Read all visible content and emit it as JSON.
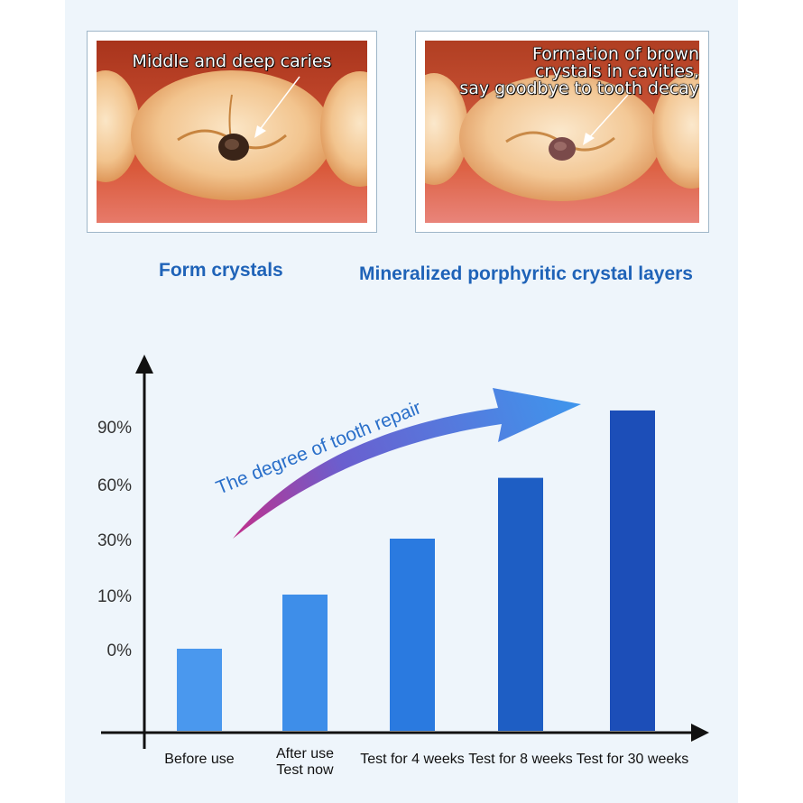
{
  "photos": {
    "left": {
      "caption": "Middle and deep caries"
    },
    "right": {
      "caption": "Formation of brown\ncrystals in cavities,\nsay goodbye to tooth decay"
    }
  },
  "labels": {
    "left": "Form crystals",
    "right": "Mineralized porphyritic crystal layers"
  },
  "chart_data": {
    "type": "bar",
    "annotation": "The degree of tooth repair",
    "y_tick_labels": [
      "0%",
      "10%",
      "30%",
      "60%",
      "90%"
    ],
    "categories": [
      {
        "lines": [
          "Before use"
        ]
      },
      {
        "lines": [
          "After use",
          "Test now"
        ]
      },
      {
        "lines": [
          "Test for 4 weeks"
        ]
      },
      {
        "lines": [
          "Test for 8 weeks"
        ]
      },
      {
        "lines": [
          "Test for 30 weeks"
        ]
      }
    ],
    "values": [
      0,
      10,
      30,
      63,
      98
    ],
    "ylim": [
      0,
      100
    ],
    "colors": {
      "bars": [
        "#4a98ee",
        "#3e8ee9",
        "#2a7ae0",
        "#1e5ec4",
        "#1c4eb8"
      ],
      "axis": "#111111",
      "annotation_text": "#2a6fc9",
      "arrow_start": "#c22f8a",
      "arrow_end": "#3f95ec"
    }
  }
}
